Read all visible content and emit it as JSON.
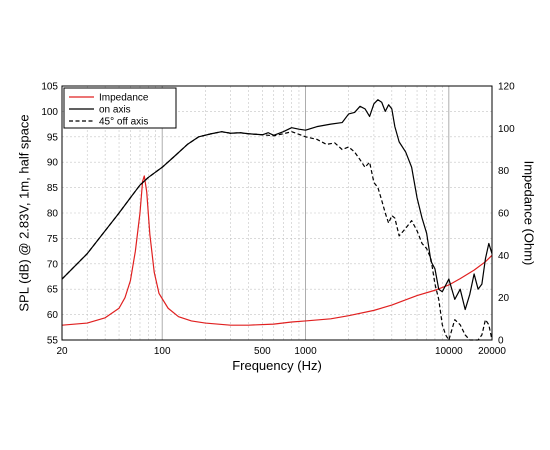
{
  "chart_data": {
    "type": "line",
    "xlabel": "Frequency (Hz)",
    "ylabel": "SPL (dB) @ 2.83V, 1m, half space",
    "y2label": "Impedance (Ohm)",
    "x_scale": "log",
    "xlim": [
      20,
      20000
    ],
    "ylim": [
      55,
      105
    ],
    "y2lim": [
      0,
      120
    ],
    "grid": true,
    "legend_position": "top-left",
    "x_ticks": [
      20,
      100,
      500,
      1000,
      10000,
      20000
    ],
    "x_tick_labels": [
      "20",
      "100",
      "500",
      "1000",
      "10000",
      "20000"
    ],
    "y_ticks": [
      55,
      60,
      65,
      70,
      75,
      80,
      85,
      90,
      95,
      100,
      105
    ],
    "y_tick_labels": [
      "55",
      "60",
      "65",
      "70",
      "75",
      "80",
      "85",
      "90",
      "95",
      "100",
      "105"
    ],
    "y2_ticks": [
      0,
      20,
      40,
      60,
      80,
      100,
      120
    ],
    "y2_tick_labels": [
      "0",
      "20",
      "40",
      "60",
      "80",
      "100",
      "120"
    ],
    "series": [
      {
        "name": "Impedance",
        "axis": "right",
        "color": "#e02020",
        "dash": "solid",
        "points": [
          [
            20,
            7
          ],
          [
            30,
            8
          ],
          [
            40,
            10.5
          ],
          [
            50,
            15
          ],
          [
            55,
            20
          ],
          [
            60,
            28
          ],
          [
            65,
            42
          ],
          [
            70,
            60
          ],
          [
            73,
            75
          ],
          [
            75,
            77.5
          ],
          [
            78,
            70
          ],
          [
            82,
            50
          ],
          [
            88,
            32
          ],
          [
            95,
            22
          ],
          [
            110,
            15
          ],
          [
            130,
            11
          ],
          [
            160,
            9
          ],
          [
            200,
            8
          ],
          [
            300,
            7
          ],
          [
            400,
            7
          ],
          [
            600,
            7.5
          ],
          [
            800,
            8.5
          ],
          [
            1000,
            9
          ],
          [
            1500,
            10
          ],
          [
            2000,
            11.5
          ],
          [
            3000,
            14
          ],
          [
            4000,
            16.5
          ],
          [
            5000,
            19
          ],
          [
            6000,
            21
          ],
          [
            8000,
            23.5
          ],
          [
            10000,
            26
          ],
          [
            12000,
            29
          ],
          [
            15000,
            33
          ],
          [
            18000,
            37
          ],
          [
            20000,
            40
          ]
        ]
      },
      {
        "name": "on axis",
        "axis": "left",
        "color": "#000000",
        "dash": "solid",
        "points": [
          [
            20,
            67
          ],
          [
            30,
            72
          ],
          [
            40,
            76.5
          ],
          [
            50,
            80
          ],
          [
            60,
            83
          ],
          [
            70,
            85.5
          ],
          [
            80,
            87
          ],
          [
            100,
            89
          ],
          [
            120,
            91
          ],
          [
            150,
            93.5
          ],
          [
            180,
            95
          ],
          [
            220,
            95.6
          ],
          [
            260,
            96
          ],
          [
            300,
            95.7
          ],
          [
            350,
            95.8
          ],
          [
            400,
            95.6
          ],
          [
            500,
            95.4
          ],
          [
            550,
            95.8
          ],
          [
            600,
            95.3
          ],
          [
            700,
            96
          ],
          [
            800,
            96.8
          ],
          [
            900,
            96.5
          ],
          [
            1000,
            96.3
          ],
          [
            1200,
            97
          ],
          [
            1500,
            97.5
          ],
          [
            1800,
            97.8
          ],
          [
            2000,
            99.5
          ],
          [
            2200,
            99.8
          ],
          [
            2400,
            101
          ],
          [
            2600,
            100.5
          ],
          [
            2800,
            99
          ],
          [
            3000,
            101.5
          ],
          [
            3200,
            102.3
          ],
          [
            3400,
            101.8
          ],
          [
            3600,
            100
          ],
          [
            3800,
            101.3
          ],
          [
            4000,
            100.5
          ],
          [
            4200,
            97
          ],
          [
            4500,
            94
          ],
          [
            5000,
            92
          ],
          [
            5500,
            89
          ],
          [
            6000,
            83
          ],
          [
            6500,
            79
          ],
          [
            7000,
            76
          ],
          [
            7500,
            70.5
          ],
          [
            8000,
            69
          ],
          [
            8500,
            65
          ],
          [
            9000,
            64.5
          ],
          [
            10000,
            67
          ],
          [
            11000,
            63
          ],
          [
            12000,
            65
          ],
          [
            13000,
            61
          ],
          [
            14000,
            64
          ],
          [
            15000,
            68
          ],
          [
            16000,
            65
          ],
          [
            17000,
            66
          ],
          [
            18000,
            71
          ],
          [
            19000,
            74
          ],
          [
            20000,
            72
          ]
        ]
      },
      {
        "name": "45° off axis",
        "axis": "left",
        "color": "#000000",
        "dash": "dashed",
        "points": [
          [
            20,
            67
          ],
          [
            30,
            72
          ],
          [
            40,
            76.5
          ],
          [
            50,
            80
          ],
          [
            60,
            83
          ],
          [
            70,
            85.5
          ],
          [
            80,
            87
          ],
          [
            100,
            89
          ],
          [
            120,
            91
          ],
          [
            150,
            93.5
          ],
          [
            180,
            95
          ],
          [
            220,
            95.6
          ],
          [
            260,
            96
          ],
          [
            300,
            95.7
          ],
          [
            350,
            95.8
          ],
          [
            400,
            95.6
          ],
          [
            500,
            95.4
          ],
          [
            600,
            95.2
          ],
          [
            700,
            95.6
          ],
          [
            800,
            96
          ],
          [
            900,
            95.5
          ],
          [
            1000,
            95
          ],
          [
            1200,
            94.5
          ],
          [
            1400,
            93.5
          ],
          [
            1600,
            93.8
          ],
          [
            1800,
            92.5
          ],
          [
            2000,
            93
          ],
          [
            2200,
            92
          ],
          [
            2400,
            90.5
          ],
          [
            2600,
            89
          ],
          [
            2800,
            90
          ],
          [
            3000,
            86
          ],
          [
            3200,
            85
          ],
          [
            3400,
            82.5
          ],
          [
            3600,
            80
          ],
          [
            3800,
            78
          ],
          [
            4000,
            79.5
          ],
          [
            4200,
            79
          ],
          [
            4500,
            75.5
          ],
          [
            5000,
            77
          ],
          [
            5500,
            78.5
          ],
          [
            6000,
            76.5
          ],
          [
            6500,
            74
          ],
          [
            7000,
            73
          ],
          [
            7500,
            71
          ],
          [
            8000,
            66
          ],
          [
            8500,
            63
          ],
          [
            9000,
            58
          ],
          [
            9500,
            56
          ],
          [
            10000,
            55
          ],
          [
            11000,
            59
          ],
          [
            12000,
            58
          ],
          [
            13000,
            56
          ],
          [
            14000,
            55
          ],
          [
            15000,
            55
          ],
          [
            16000,
            55
          ],
          [
            17000,
            56
          ],
          [
            18000,
            59
          ],
          [
            19000,
            58
          ],
          [
            20000,
            55
          ]
        ]
      }
    ]
  }
}
